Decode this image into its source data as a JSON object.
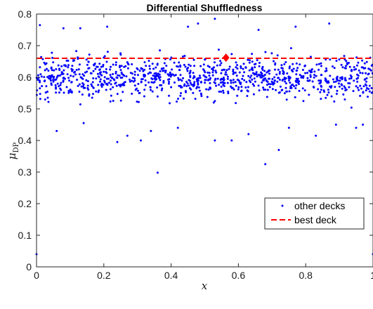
{
  "chart_data": {
    "type": "scatter",
    "title": "Differential Shuffledness",
    "xlabel": "x",
    "ylabel": "μ",
    "ylabel_subscript": "DP",
    "xlim": [
      0,
      1
    ],
    "ylim": [
      0,
      0.8
    ],
    "xticks": [
      "0",
      "0.2",
      "0.4",
      "0.6",
      "0.8",
      "1"
    ],
    "yticks": [
      "0",
      "0.1",
      "0.2",
      "0.3",
      "0.4",
      "0.5",
      "0.6",
      "0.7",
      "0.8"
    ],
    "grid": false,
    "legend_position": "lower-right",
    "series": [
      {
        "name": "other decks",
        "color": "#0000ff",
        "marker": "dot",
        "points": [
          [
            0.0,
            0.04
          ],
          [
            1.0,
            0.04
          ],
          [
            0.36,
            0.298
          ],
          [
            0.68,
            0.325
          ],
          [
            0.72,
            0.37
          ],
          [
            0.53,
            0.785
          ],
          [
            0.87,
            0.77
          ],
          [
            0.21,
            0.76
          ],
          [
            0.48,
            0.77
          ],
          [
            0.08,
            0.755
          ],
          [
            0.01,
            0.765
          ],
          [
            0.45,
            0.76
          ],
          [
            0.77,
            0.76
          ],
          [
            0.66,
            0.75
          ],
          [
            0.13,
            0.755
          ],
          [
            0.53,
            0.4
          ],
          [
            0.31,
            0.4
          ],
          [
            0.24,
            0.395
          ],
          [
            0.75,
            0.44
          ],
          [
            0.89,
            0.45
          ],
          [
            0.97,
            0.45
          ],
          [
            0.58,
            0.4
          ],
          [
            0.63,
            0.42
          ],
          [
            0.06,
            0.43
          ],
          [
            0.14,
            0.455
          ],
          [
            0.34,
            0.43
          ],
          [
            0.42,
            0.44
          ],
          [
            0.95,
            0.44
          ],
          [
            0.27,
            0.415
          ],
          [
            0.83,
            0.415
          ]
        ]
      },
      {
        "name": "best deck",
        "color": "#ff0000",
        "style": "dashed",
        "value": 0.66
      }
    ],
    "highlight": {
      "x": 0.563,
      "y": 0.662,
      "color": "#ff0000",
      "marker": "diamond"
    }
  }
}
